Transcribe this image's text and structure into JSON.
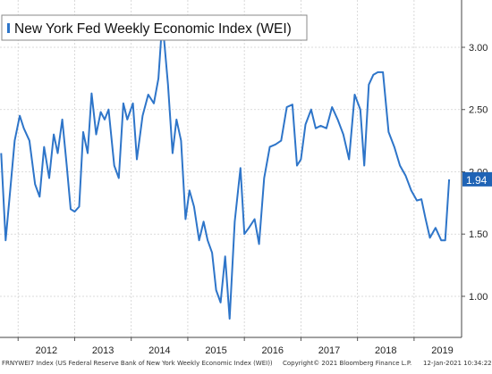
{
  "chart_data": {
    "type": "line",
    "series": [
      {
        "name": "New York Fed Weekly Economic Index (WEI)",
        "x": [
          2011.7,
          2011.78,
          2011.86,
          2011.94,
          2012.03,
          2012.1,
          2012.2,
          2012.3,
          2012.38,
          2012.46,
          2012.55,
          2012.63,
          2012.7,
          2012.78,
          2012.86,
          2012.93,
          2013.0,
          2013.08,
          2013.15,
          2013.23,
          2013.3,
          2013.38,
          2013.46,
          2013.53,
          2013.6,
          2013.7,
          2013.78,
          2013.86,
          2013.93,
          2014.03,
          2014.1,
          2014.2,
          2014.3,
          2014.4,
          2014.48,
          2014.55,
          2014.65,
          2014.73,
          2014.8,
          2014.88,
          2014.96,
          2015.03,
          2015.11,
          2015.2,
          2015.28,
          2015.35,
          2015.43,
          2015.5,
          2015.58,
          2015.66,
          2015.74,
          2015.83,
          2015.93,
          2016.0,
          2016.08,
          2016.18,
          2016.26,
          2016.35,
          2016.45,
          2016.55,
          2016.65,
          2016.75,
          2016.85,
          2016.93,
          2017.0,
          2017.08,
          2017.18,
          2017.26,
          2017.35,
          2017.45,
          2017.55,
          2017.65,
          2017.75,
          2017.85,
          2017.95,
          2018.05,
          2018.12,
          2018.2,
          2018.28,
          2018.36,
          2018.45,
          2018.55,
          2018.65,
          2018.75,
          2018.85,
          2018.95,
          2019.05,
          2019.13,
          2019.2,
          2019.28,
          2019.38,
          2019.48,
          2019.55
        ],
        "y": [
          2.15,
          1.45,
          1.85,
          2.25,
          2.45,
          2.35,
          2.25,
          1.9,
          1.8,
          2.2,
          1.95,
          2.3,
          2.15,
          2.42,
          2.05,
          1.7,
          1.68,
          1.72,
          2.32,
          2.15,
          2.63,
          2.3,
          2.48,
          2.42,
          2.5,
          2.05,
          1.95,
          2.55,
          2.42,
          2.55,
          2.1,
          2.45,
          2.62,
          2.55,
          2.75,
          3.22,
          2.7,
          2.15,
          2.42,
          2.25,
          1.62,
          1.85,
          1.72,
          1.45,
          1.6,
          1.45,
          1.35,
          1.05,
          0.95,
          1.32,
          0.82,
          1.6,
          2.03,
          1.5,
          1.55,
          1.62,
          1.42,
          1.95,
          2.2,
          2.22,
          2.25,
          2.52,
          2.54,
          2.05,
          2.1,
          2.38,
          2.5,
          2.35,
          2.37,
          2.35,
          2.52,
          2.42,
          2.3,
          2.1,
          2.62,
          2.5,
          2.05,
          2.7,
          2.78,
          2.8,
          2.8,
          2.32,
          2.2,
          2.05,
          1.97,
          1.85,
          1.77,
          1.78,
          1.63,
          1.47,
          1.55,
          1.45,
          1.45
        ]
      }
    ],
    "last_point": {
      "x": 2019.62,
      "y": 1.94
    },
    "last_value_label": "1.94",
    "x_ticks": [
      2012,
      2013,
      2014,
      2015,
      2016,
      2017,
      2018,
      2019
    ],
    "x_tick_labels": [
      "2012",
      "2013",
      "2014",
      "2015",
      "2016",
      "2017",
      "2018",
      "2019"
    ],
    "y_ticks": [
      1.0,
      1.5,
      2.0,
      2.5,
      3.0
    ],
    "y_tick_labels": [
      "1.00",
      "1.50",
      "2.00",
      "2.50",
      "3.00"
    ],
    "xlim": [
      2011.68,
      2019.84
    ],
    "ylim": [
      0.67,
      3.38
    ],
    "grid": true,
    "legend_placement": "top-left",
    "line_color": "#2e75c9",
    "label_box_color": "#1f63b5",
    "grid_color": "#d0d0d0",
    "xlabel": "",
    "ylabel": "",
    "title": ""
  },
  "footer": {
    "ticker": "FRNYWEI7 Index (US Federal Reserve Bank of New York Weekly Economic Index (WEI))",
    "copyright": "Copyright© 2021 Bloomberg Finance L.P.",
    "timestamp": "12-Jan-2021 10:34:22"
  }
}
